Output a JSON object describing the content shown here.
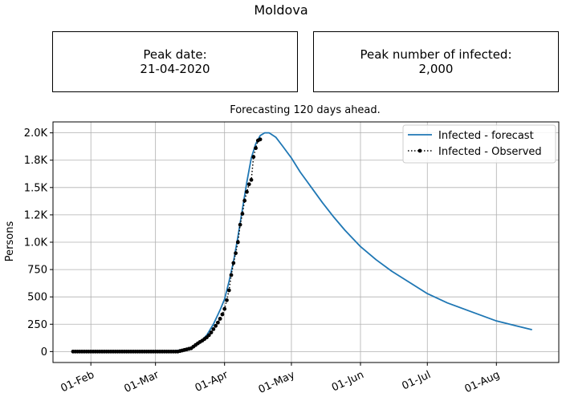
{
  "page": {
    "title": "Moldova",
    "peak_date_label": "Peak date:",
    "peak_date_value": "21-04-2020",
    "peak_infected_label": "Peak number of infected:",
    "peak_infected_value": "2,000"
  },
  "chart_data": {
    "type": "line",
    "title": "Forecasting 120 days ahead.",
    "xlabel": "",
    "ylabel": "Persons",
    "x_axis": {
      "type": "date",
      "range": [
        "2020-01-15",
        "2020-08-29"
      ],
      "ticks": [
        "2020-02-01",
        "2020-03-01",
        "2020-04-01",
        "2020-05-01",
        "2020-06-01",
        "2020-07-01",
        "2020-08-01"
      ],
      "tick_labels": [
        "01-Feb",
        "01-Mar",
        "01-Apr",
        "01-May",
        "01-Jun",
        "01-Jul",
        "01-Aug"
      ],
      "tick_label_rotation_deg": 25
    },
    "y_axis": {
      "range": [
        -100,
        2100
      ],
      "ticks": [
        0,
        250,
        500,
        750,
        1000,
        1250,
        1500,
        1750,
        2000
      ],
      "tick_labels": [
        "0",
        "250",
        "500",
        "750",
        "1.0K",
        "1.2K",
        "1.5K",
        "1.8K",
        "2.0K"
      ]
    },
    "grid": true,
    "legend_position": "top-right",
    "colors": {
      "forecast": "#1f77b4",
      "observed": "#000000"
    },
    "series": [
      {
        "name": "Infected - forecast",
        "style": "solid line",
        "points": [
          [
            "2020-03-05",
            2
          ],
          [
            "2020-03-10",
            8
          ],
          [
            "2020-03-15",
            22
          ],
          [
            "2020-03-18",
            45
          ],
          [
            "2020-03-21",
            85
          ],
          [
            "2020-03-24",
            150
          ],
          [
            "2020-03-27",
            250
          ],
          [
            "2020-03-30",
            380
          ],
          [
            "2020-04-01",
            480
          ],
          [
            "2020-04-03",
            640
          ],
          [
            "2020-04-05",
            820
          ],
          [
            "2020-04-07",
            1050
          ],
          [
            "2020-04-09",
            1300
          ],
          [
            "2020-04-11",
            1550
          ],
          [
            "2020-04-13",
            1770
          ],
          [
            "2020-04-15",
            1900
          ],
          [
            "2020-04-17",
            1975
          ],
          [
            "2020-04-19",
            2000
          ],
          [
            "2020-04-21",
            2000
          ],
          [
            "2020-04-24",
            1960
          ],
          [
            "2020-04-27",
            1880
          ],
          [
            "2020-05-01",
            1770
          ],
          [
            "2020-05-05",
            1640
          ],
          [
            "2020-05-10",
            1500
          ],
          [
            "2020-05-15",
            1360
          ],
          [
            "2020-05-20",
            1230
          ],
          [
            "2020-05-25",
            1110
          ],
          [
            "2020-06-01",
            960
          ],
          [
            "2020-06-08",
            840
          ],
          [
            "2020-06-15",
            735
          ],
          [
            "2020-06-22",
            645
          ],
          [
            "2020-07-01",
            530
          ],
          [
            "2020-07-10",
            445
          ],
          [
            "2020-07-20",
            370
          ],
          [
            "2020-08-01",
            280
          ],
          [
            "2020-08-10",
            235
          ],
          [
            "2020-08-17",
            200
          ]
        ]
      },
      {
        "name": "Infected - Observed",
        "style": "dotted line with circle markers",
        "points": [
          [
            "2020-01-24",
            0
          ],
          [
            "2020-01-25",
            0
          ],
          [
            "2020-01-26",
            0
          ],
          [
            "2020-01-27",
            0
          ],
          [
            "2020-01-28",
            0
          ],
          [
            "2020-01-29",
            0
          ],
          [
            "2020-01-30",
            0
          ],
          [
            "2020-01-31",
            0
          ],
          [
            "2020-02-01",
            0
          ],
          [
            "2020-02-02",
            0
          ],
          [
            "2020-02-03",
            0
          ],
          [
            "2020-02-04",
            0
          ],
          [
            "2020-02-05",
            0
          ],
          [
            "2020-02-06",
            0
          ],
          [
            "2020-02-07",
            0
          ],
          [
            "2020-02-08",
            0
          ],
          [
            "2020-02-09",
            0
          ],
          [
            "2020-02-10",
            0
          ],
          [
            "2020-02-11",
            0
          ],
          [
            "2020-02-12",
            0
          ],
          [
            "2020-02-13",
            0
          ],
          [
            "2020-02-14",
            0
          ],
          [
            "2020-02-15",
            0
          ],
          [
            "2020-02-16",
            0
          ],
          [
            "2020-02-17",
            0
          ],
          [
            "2020-02-18",
            0
          ],
          [
            "2020-02-19",
            0
          ],
          [
            "2020-02-20",
            0
          ],
          [
            "2020-02-21",
            0
          ],
          [
            "2020-02-22",
            0
          ],
          [
            "2020-02-23",
            0
          ],
          [
            "2020-02-24",
            0
          ],
          [
            "2020-02-25",
            0
          ],
          [
            "2020-02-26",
            0
          ],
          [
            "2020-02-27",
            0
          ],
          [
            "2020-02-28",
            0
          ],
          [
            "2020-02-29",
            0
          ],
          [
            "2020-03-01",
            0
          ],
          [
            "2020-03-02",
            0
          ],
          [
            "2020-03-03",
            0
          ],
          [
            "2020-03-04",
            0
          ],
          [
            "2020-03-05",
            0
          ],
          [
            "2020-03-06",
            0
          ],
          [
            "2020-03-07",
            0
          ],
          [
            "2020-03-08",
            0
          ],
          [
            "2020-03-09",
            0
          ],
          [
            "2020-03-10",
            0
          ],
          [
            "2020-03-11",
            0
          ],
          [
            "2020-03-12",
            5
          ],
          [
            "2020-03-13",
            10
          ],
          [
            "2020-03-14",
            15
          ],
          [
            "2020-03-15",
            20
          ],
          [
            "2020-03-16",
            25
          ],
          [
            "2020-03-17",
            30
          ],
          [
            "2020-03-18",
            45
          ],
          [
            "2020-03-19",
            60
          ],
          [
            "2020-03-20",
            75
          ],
          [
            "2020-03-21",
            88
          ],
          [
            "2020-03-22",
            100
          ],
          [
            "2020-03-23",
            115
          ],
          [
            "2020-03-24",
            130
          ],
          [
            "2020-03-25",
            150
          ],
          [
            "2020-03-26",
            175
          ],
          [
            "2020-03-27",
            205
          ],
          [
            "2020-03-28",
            235
          ],
          [
            "2020-03-29",
            265
          ],
          [
            "2020-03-30",
            300
          ],
          [
            "2020-03-31",
            340
          ],
          [
            "2020-04-01",
            390
          ],
          [
            "2020-04-02",
            470
          ],
          [
            "2020-04-03",
            560
          ],
          [
            "2020-04-04",
            700
          ],
          [
            "2020-04-05",
            810
          ],
          [
            "2020-04-06",
            900
          ],
          [
            "2020-04-07",
            1000
          ],
          [
            "2020-04-08",
            1160
          ],
          [
            "2020-04-09",
            1260
          ],
          [
            "2020-04-10",
            1380
          ],
          [
            "2020-04-11",
            1460
          ],
          [
            "2020-04-12",
            1530
          ],
          [
            "2020-04-13",
            1570
          ],
          [
            "2020-04-14",
            1780
          ],
          [
            "2020-04-15",
            1860
          ],
          [
            "2020-04-16",
            1930
          ],
          [
            "2020-04-17",
            1940
          ]
        ]
      }
    ]
  }
}
